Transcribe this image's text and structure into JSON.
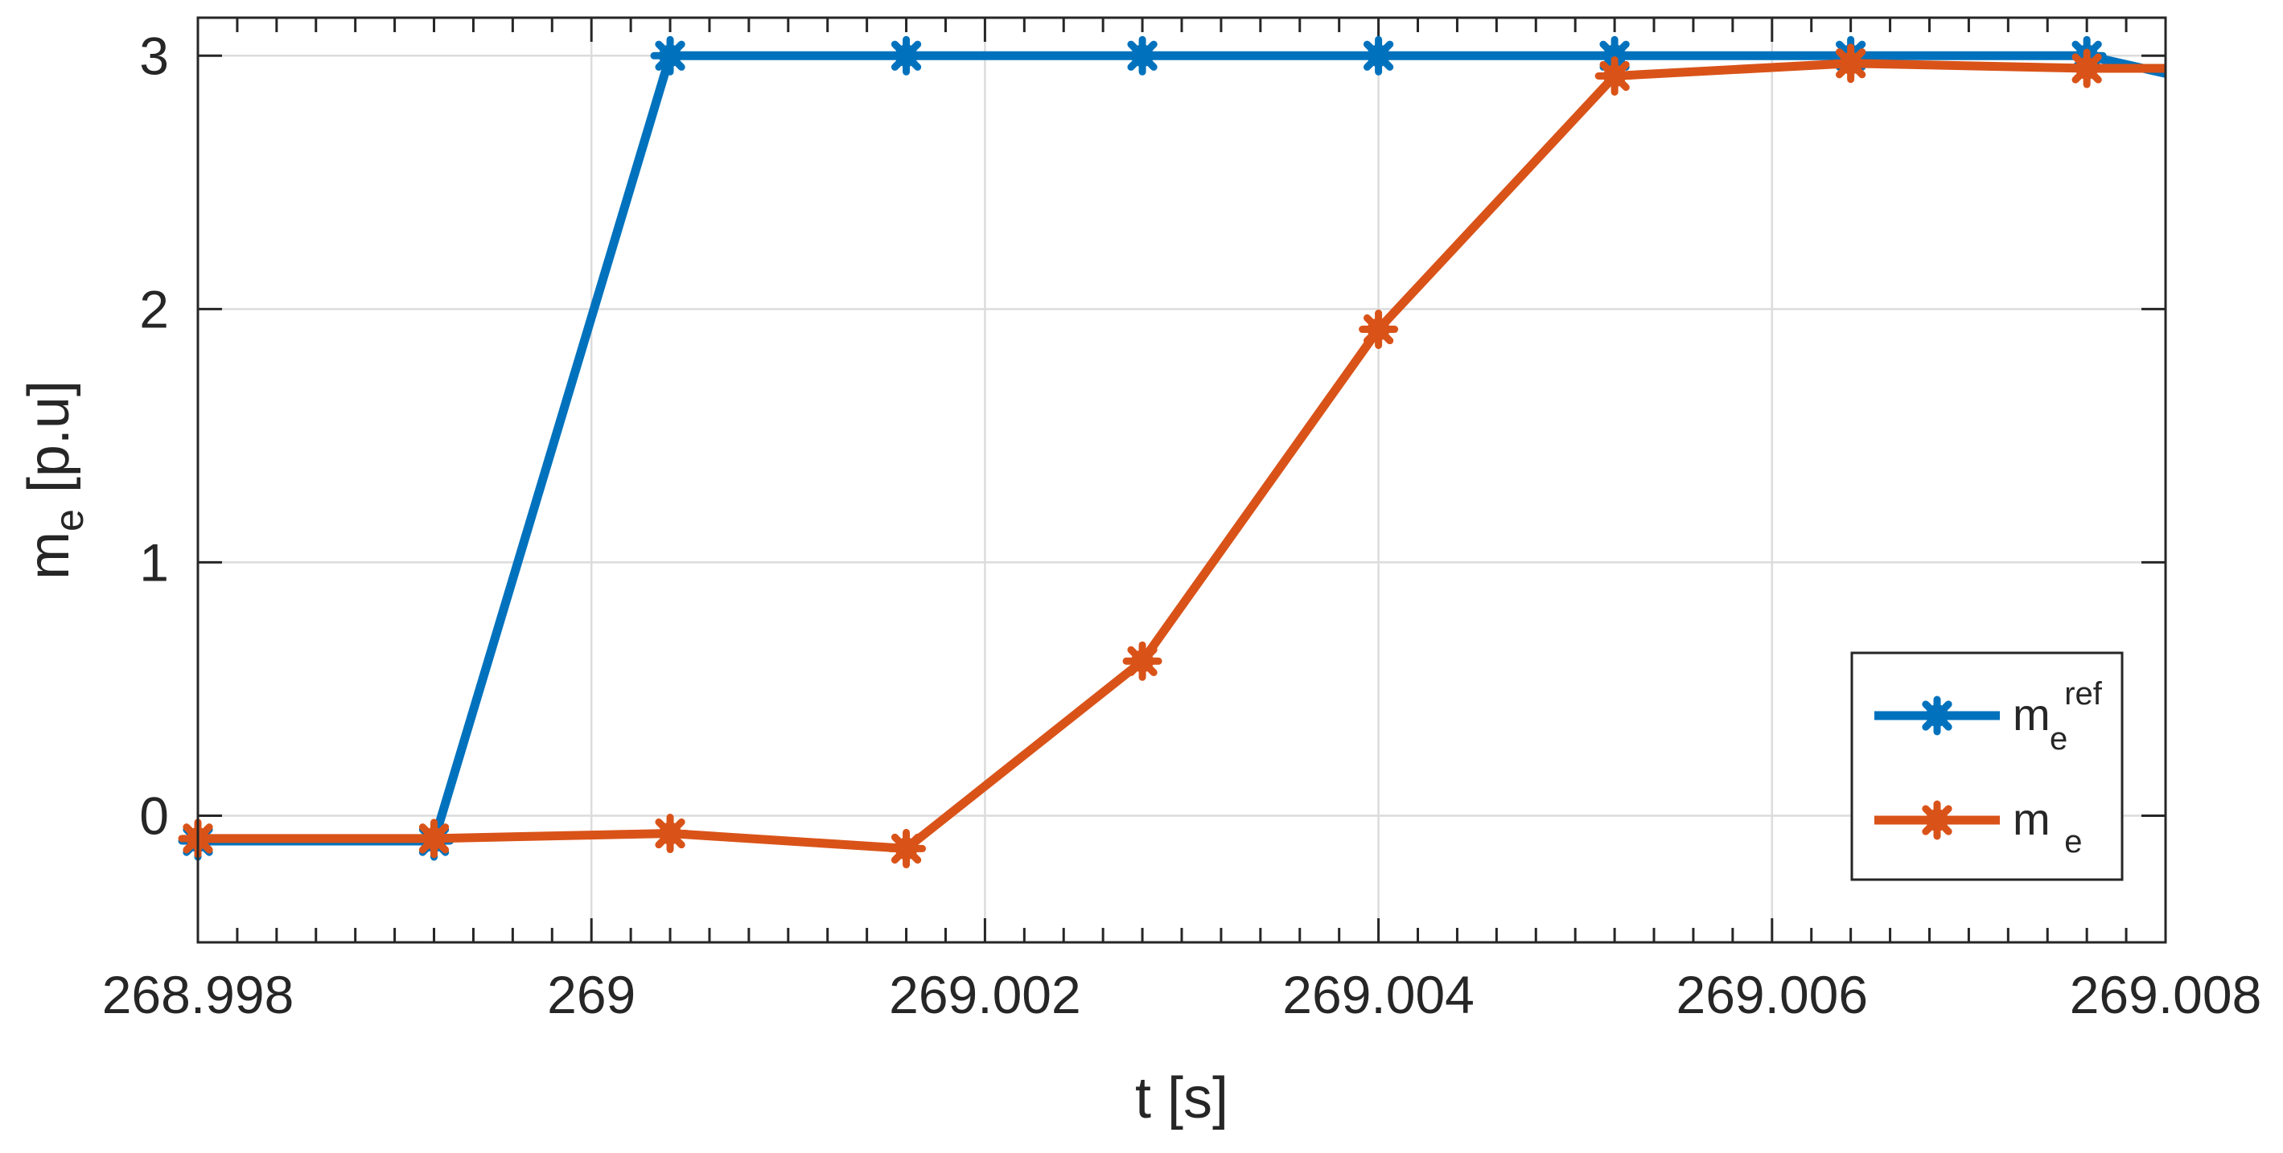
{
  "chart_data": {
    "type": "line",
    "title": "",
    "xlabel": "t [s]",
    "ylabel": {
      "base": "m",
      "sub": "e",
      "rest": " [p.u]"
    },
    "xlim": [
      268.998,
      269.008
    ],
    "ylim": [
      -0.5,
      3.15
    ],
    "grid": true,
    "legend_position": "bottom-right",
    "x_ticks": [
      268.998,
      269.0,
      269.002,
      269.004,
      269.006,
      269.008
    ],
    "x_tick_labels": [
      "268.998",
      "269",
      "269.002",
      "269.004",
      "269.006",
      "269.008"
    ],
    "y_ticks": [
      0,
      1,
      2,
      3
    ],
    "y_tick_labels": [
      "0",
      "1",
      "2",
      "3"
    ],
    "series": [
      {
        "key": "mref",
        "legend": {
          "base": "m",
          "sub": "e",
          "sup": "ref"
        },
        "color": "#0072BD",
        "x": [
          268.998,
          268.9992,
          269.0004,
          269.0016,
          269.0028,
          269.004,
          269.0052,
          269.0064,
          269.0076,
          269.008
        ],
        "y": [
          -0.1,
          -0.1,
          3.0,
          3.0,
          3.0,
          3.0,
          3.0,
          3.0,
          3.0,
          2.93
        ],
        "markers": [
          true,
          true,
          true,
          true,
          true,
          true,
          true,
          true,
          true,
          false
        ]
      },
      {
        "key": "me",
        "legend": {
          "base": "m",
          "sub": "e",
          "sup": ""
        },
        "color": "#D95319",
        "x": [
          268.998,
          268.9992,
          269.0004,
          269.0016,
          269.0028,
          269.004,
          269.0052,
          269.0064,
          269.0076,
          269.008
        ],
        "y": [
          -0.09,
          -0.09,
          -0.07,
          -0.13,
          0.61,
          1.92,
          2.92,
          2.97,
          2.95,
          2.95
        ],
        "markers": [
          true,
          true,
          true,
          true,
          true,
          true,
          true,
          true,
          true,
          false
        ]
      }
    ]
  }
}
